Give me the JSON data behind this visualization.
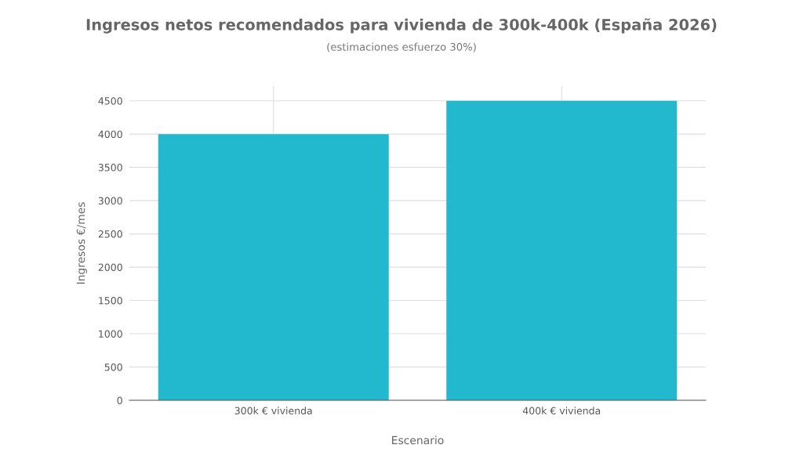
{
  "chart_data": {
    "type": "bar",
    "title": "Ingresos netos recomendados para vivienda de 300k-400k (España 2026)",
    "subtitle": "(estimaciones esfuerzo 30%)",
    "xlabel": "Escenario",
    "ylabel": "Ingresos €/mes",
    "categories": [
      "300k € vivienda",
      "400k € vivienda"
    ],
    "values": [
      4000,
      4500
    ],
    "color": "#22b8cd",
    "ylim": [
      0,
      4720
    ],
    "yticks": [
      0,
      500,
      1000,
      1500,
      2000,
      2500,
      3000,
      3500,
      4000,
      4500
    ],
    "grid": true,
    "legend": false
  }
}
